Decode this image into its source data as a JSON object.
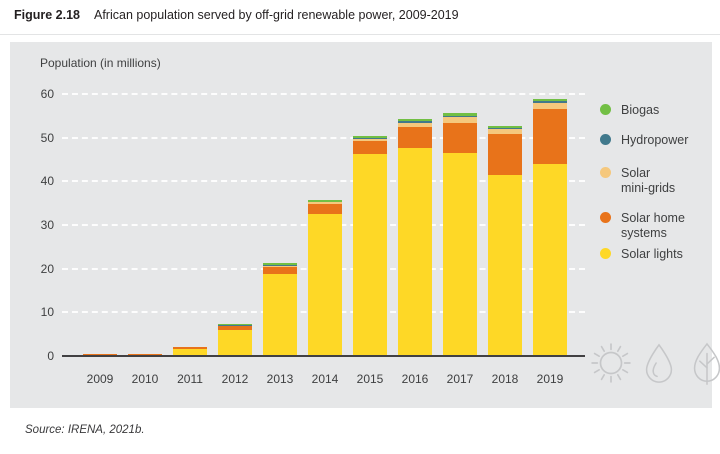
{
  "figure": {
    "label": "Figure 2.18",
    "title": "African population served by off-grid renewable power, 2009-2019",
    "source": "Source: IRENA, 2021b."
  },
  "legend": [
    {
      "label": "Biogas",
      "color": "#72bf44"
    },
    {
      "label": "Hydropower",
      "color": "#41798c"
    },
    {
      "label": "Solar\nmini-grids",
      "color": "#f5c87d"
    },
    {
      "label": "Solar home\nsystems",
      "color": "#e8731a"
    },
    {
      "label": "Solar lights",
      "color": "#fed826"
    }
  ],
  "icons": [
    "sun-icon",
    "water-drop-icon",
    "tree-icon"
  ],
  "chart_data": {
    "type": "bar",
    "stacked": true,
    "title": "Population (in millions)",
    "categories": [
      "2009",
      "2010",
      "2011",
      "2012",
      "2013",
      "2014",
      "2015",
      "2016",
      "2017",
      "2018",
      "2019"
    ],
    "series": [
      {
        "name": "Solar lights",
        "color": "#fed826",
        "values": [
          0.35,
          0.45,
          1.9,
          6.3,
          19.0,
          32.8,
          46.4,
          47.9,
          46.7,
          41.7,
          44.3
        ]
      },
      {
        "name": "Solar home systems",
        "color": "#e8731a",
        "values": [
          0.25,
          0.3,
          0.3,
          0.8,
          1.6,
          2.3,
          3.0,
          4.8,
          6.9,
          9.4,
          12.6
        ]
      },
      {
        "name": "Solar mini-grids",
        "color": "#f5c87d",
        "values": [
          0.02,
          0.02,
          0.05,
          0.1,
          0.3,
          0.3,
          0.5,
          1.0,
          1.3,
          1.1,
          1.2
        ]
      },
      {
        "name": "Hydropower",
        "color": "#41798c",
        "values": [
          0.02,
          0.02,
          0.05,
          0.1,
          0.2,
          0.2,
          0.3,
          0.3,
          0.4,
          0.3,
          0.5
        ]
      },
      {
        "name": "Biogas",
        "color": "#72bf44",
        "values": [
          0.02,
          0.02,
          0.05,
          0.2,
          0.4,
          0.4,
          0.4,
          0.5,
          0.5,
          0.4,
          0.4
        ]
      }
    ],
    "ylabel": "Population (in millions)",
    "xlabel": "",
    "ylim": [
      0,
      60
    ],
    "yticks": [
      0,
      10,
      20,
      30,
      40,
      50,
      60
    ],
    "grid": "horizontal-dashed-white",
    "legend_position": "right"
  }
}
